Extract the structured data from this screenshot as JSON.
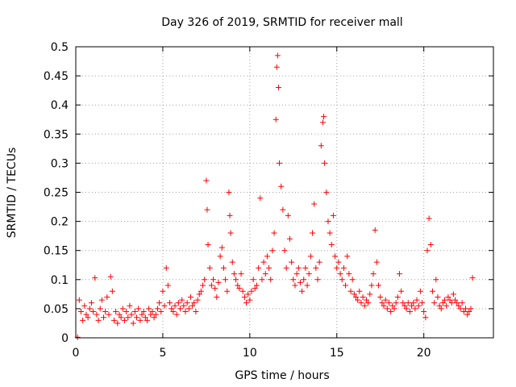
{
  "chart_data": {
    "type": "scatter",
    "title": "Day 326 of 2019, SRMTID for receiver mall",
    "xlabel": "GPS time / hours",
    "ylabel": "SRMTID / TECUs",
    "xlim": [
      0,
      24
    ],
    "ylim": [
      0,
      0.5
    ],
    "x_ticks": [
      0,
      5,
      10,
      15,
      20
    ],
    "x_tick_labels": [
      "0",
      "5",
      "10",
      "15",
      "20"
    ],
    "y_ticks": [
      0,
      0.05,
      0.1,
      0.15,
      0.2,
      0.25,
      0.3,
      0.35,
      0.4,
      0.45,
      0.5
    ],
    "y_tick_labels": [
      "0",
      "0.05",
      "0.1",
      "0.15",
      "0.2",
      "0.25",
      "0.3",
      "0.35",
      "0.4",
      "0.45",
      "0.5"
    ],
    "grid": true,
    "marker": "+",
    "color": "#ff0000",
    "series": [
      {
        "name": "SRMTID",
        "points": [
          [
            0.1,
            0.001
          ],
          [
            0.2,
            0.065
          ],
          [
            0.3,
            0.045
          ],
          [
            0.4,
            0.03
          ],
          [
            0.5,
            0.055
          ],
          [
            0.6,
            0.04
          ],
          [
            0.7,
            0.035
          ],
          [
            0.8,
            0.05
          ],
          [
            0.9,
            0.06
          ],
          [
            1.0,
            0.045
          ],
          [
            1.1,
            0.103
          ],
          [
            1.2,
            0.04
          ],
          [
            1.3,
            0.03
          ],
          [
            1.4,
            0.05
          ],
          [
            1.5,
            0.065
          ],
          [
            1.6,
            0.035
          ],
          [
            1.7,
            0.045
          ],
          [
            1.8,
            0.07
          ],
          [
            1.9,
            0.04
          ],
          [
            2.0,
            0.105
          ],
          [
            2.1,
            0.08
          ],
          [
            2.2,
            0.03
          ],
          [
            2.3,
            0.045
          ],
          [
            2.4,
            0.025
          ],
          [
            2.5,
            0.04
          ],
          [
            2.6,
            0.035
          ],
          [
            2.7,
            0.05
          ],
          [
            2.8,
            0.03
          ],
          [
            2.9,
            0.045
          ],
          [
            3.0,
            0.035
          ],
          [
            3.1,
            0.055
          ],
          [
            3.2,
            0.04
          ],
          [
            3.3,
            0.025
          ],
          [
            3.4,
            0.045
          ],
          [
            3.5,
            0.035
          ],
          [
            3.6,
            0.05
          ],
          [
            3.7,
            0.03
          ],
          [
            3.8,
            0.04
          ],
          [
            3.9,
            0.045
          ],
          [
            4.0,
            0.035
          ],
          [
            4.1,
            0.03
          ],
          [
            4.2,
            0.05
          ],
          [
            4.3,
            0.04
          ],
          [
            4.4,
            0.045
          ],
          [
            4.5,
            0.035
          ],
          [
            4.6,
            0.04
          ],
          [
            4.7,
            0.05
          ],
          [
            4.8,
            0.06
          ],
          [
            4.9,
            0.045
          ],
          [
            5.0,
            0.08
          ],
          [
            5.1,
            0.055
          ],
          [
            5.2,
            0.12
          ],
          [
            5.3,
            0.09
          ],
          [
            5.4,
            0.06
          ],
          [
            5.5,
            0.05
          ],
          [
            5.6,
            0.045
          ],
          [
            5.7,
            0.055
          ],
          [
            5.8,
            0.04
          ],
          [
            5.9,
            0.06
          ],
          [
            6.0,
            0.05
          ],
          [
            6.1,
            0.065
          ],
          [
            6.2,
            0.055
          ],
          [
            6.3,
            0.045
          ],
          [
            6.4,
            0.06
          ],
          [
            6.5,
            0.05
          ],
          [
            6.6,
            0.07
          ],
          [
            6.7,
            0.055
          ],
          [
            6.8,
            0.06
          ],
          [
            6.9,
            0.045
          ],
          [
            7.0,
            0.065
          ],
          [
            7.1,
            0.075
          ],
          [
            7.2,
            0.08
          ],
          [
            7.3,
            0.09
          ],
          [
            7.4,
            0.1
          ],
          [
            7.5,
            0.27
          ],
          [
            7.55,
            0.22
          ],
          [
            7.6,
            0.16
          ],
          [
            7.7,
            0.12
          ],
          [
            7.8,
            0.09
          ],
          [
            7.9,
            0.1
          ],
          [
            8.0,
            0.085
          ],
          [
            8.1,
            0.07
          ],
          [
            8.2,
            0.095
          ],
          [
            8.3,
            0.14
          ],
          [
            8.4,
            0.155
          ],
          [
            8.5,
            0.12
          ],
          [
            8.6,
            0.1
          ],
          [
            8.7,
            0.08
          ],
          [
            8.8,
            0.25
          ],
          [
            8.85,
            0.21
          ],
          [
            8.9,
            0.18
          ],
          [
            9.0,
            0.13
          ],
          [
            9.1,
            0.11
          ],
          [
            9.2,
            0.1
          ],
          [
            9.3,
            0.09
          ],
          [
            9.4,
            0.085
          ],
          [
            9.5,
            0.11
          ],
          [
            9.6,
            0.08
          ],
          [
            9.7,
            0.07
          ],
          [
            9.8,
            0.06
          ],
          [
            9.9,
            0.075
          ],
          [
            10.0,
            0.065
          ],
          [
            10.1,
            0.08
          ],
          [
            10.2,
            0.1
          ],
          [
            10.3,
            0.085
          ],
          [
            10.4,
            0.09
          ],
          [
            10.5,
            0.12
          ],
          [
            10.6,
            0.24
          ],
          [
            10.7,
            0.1
          ],
          [
            10.8,
            0.13
          ],
          [
            10.9,
            0.11
          ],
          [
            11.0,
            0.14
          ],
          [
            11.1,
            0.12
          ],
          [
            11.2,
            0.1
          ],
          [
            11.3,
            0.15
          ],
          [
            11.4,
            0.18
          ],
          [
            11.5,
            0.375
          ],
          [
            11.55,
            0.465
          ],
          [
            11.6,
            0.485
          ],
          [
            11.65,
            0.43
          ],
          [
            11.7,
            0.3
          ],
          [
            11.8,
            0.26
          ],
          [
            11.9,
            0.22
          ],
          [
            12.0,
            0.15
          ],
          [
            12.1,
            0.12
          ],
          [
            12.2,
            0.21
          ],
          [
            12.3,
            0.17
          ],
          [
            12.4,
            0.13
          ],
          [
            12.5,
            0.1
          ],
          [
            12.6,
            0.09
          ],
          [
            12.7,
            0.11
          ],
          [
            12.8,
            0.12
          ],
          [
            12.9,
            0.095
          ],
          [
            13.0,
            0.08
          ],
          [
            13.1,
            0.1
          ],
          [
            13.2,
            0.12
          ],
          [
            13.3,
            0.09
          ],
          [
            13.4,
            0.11
          ],
          [
            13.5,
            0.14
          ],
          [
            13.6,
            0.18
          ],
          [
            13.7,
            0.23
          ],
          [
            13.8,
            0.12
          ],
          [
            13.9,
            0.1
          ],
          [
            14.0,
            0.13
          ],
          [
            14.1,
            0.33
          ],
          [
            14.2,
            0.37
          ],
          [
            14.25,
            0.38
          ],
          [
            14.3,
            0.3
          ],
          [
            14.4,
            0.25
          ],
          [
            14.5,
            0.2
          ],
          [
            14.6,
            0.18
          ],
          [
            14.7,
            0.16
          ],
          [
            14.8,
            0.21
          ],
          [
            14.9,
            0.14
          ],
          [
            15.0,
            0.12
          ],
          [
            15.1,
            0.13
          ],
          [
            15.2,
            0.11
          ],
          [
            15.3,
            0.1
          ],
          [
            15.4,
            0.12
          ],
          [
            15.5,
            0.09
          ],
          [
            15.6,
            0.14
          ],
          [
            15.7,
            0.11
          ],
          [
            15.8,
            0.08
          ],
          [
            15.9,
            0.1
          ],
          [
            16.0,
            0.075
          ],
          [
            16.1,
            0.07
          ],
          [
            16.2,
            0.065
          ],
          [
            16.3,
            0.08
          ],
          [
            16.4,
            0.06
          ],
          [
            16.5,
            0.07
          ],
          [
            16.6,
            0.055
          ],
          [
            16.7,
            0.065
          ],
          [
            16.8,
            0.06
          ],
          [
            16.9,
            0.075
          ],
          [
            17.0,
            0.09
          ],
          [
            17.1,
            0.11
          ],
          [
            17.2,
            0.185
          ],
          [
            17.3,
            0.13
          ],
          [
            17.4,
            0.09
          ],
          [
            17.5,
            0.07
          ],
          [
            17.6,
            0.06
          ],
          [
            17.7,
            0.055
          ],
          [
            17.8,
            0.065
          ],
          [
            17.9,
            0.05
          ],
          [
            18.0,
            0.06
          ],
          [
            18.1,
            0.045
          ],
          [
            18.2,
            0.055
          ],
          [
            18.3,
            0.05
          ],
          [
            18.4,
            0.06
          ],
          [
            18.5,
            0.07
          ],
          [
            18.6,
            0.11
          ],
          [
            18.7,
            0.08
          ],
          [
            18.8,
            0.06
          ],
          [
            18.9,
            0.055
          ],
          [
            19.0,
            0.05
          ],
          [
            19.1,
            0.06
          ],
          [
            19.2,
            0.045
          ],
          [
            19.3,
            0.055
          ],
          [
            19.4,
            0.06
          ],
          [
            19.5,
            0.05
          ],
          [
            19.6,
            0.065
          ],
          [
            19.7,
            0.055
          ],
          [
            19.8,
            0.08
          ],
          [
            19.9,
            0.06
          ],
          [
            20.0,
            0.045
          ],
          [
            20.1,
            0.035
          ],
          [
            20.2,
            0.15
          ],
          [
            20.3,
            0.205
          ],
          [
            20.4,
            0.16
          ],
          [
            20.5,
            0.08
          ],
          [
            20.6,
            0.06
          ],
          [
            20.7,
            0.1
          ],
          [
            20.8,
            0.07
          ],
          [
            20.9,
            0.055
          ],
          [
            21.0,
            0.05
          ],
          [
            21.1,
            0.06
          ],
          [
            21.2,
            0.065
          ],
          [
            21.3,
            0.055
          ],
          [
            21.4,
            0.07
          ],
          [
            21.5,
            0.065
          ],
          [
            21.6,
            0.06
          ],
          [
            21.7,
            0.075
          ],
          [
            21.8,
            0.065
          ],
          [
            21.9,
            0.06
          ],
          [
            22.0,
            0.055
          ],
          [
            22.1,
            0.05
          ],
          [
            22.2,
            0.06
          ],
          [
            22.3,
            0.045
          ],
          [
            22.4,
            0.05
          ],
          [
            22.5,
            0.04
          ],
          [
            22.6,
            0.045
          ],
          [
            22.7,
            0.05
          ],
          [
            22.8,
            0.103
          ]
        ]
      }
    ]
  }
}
